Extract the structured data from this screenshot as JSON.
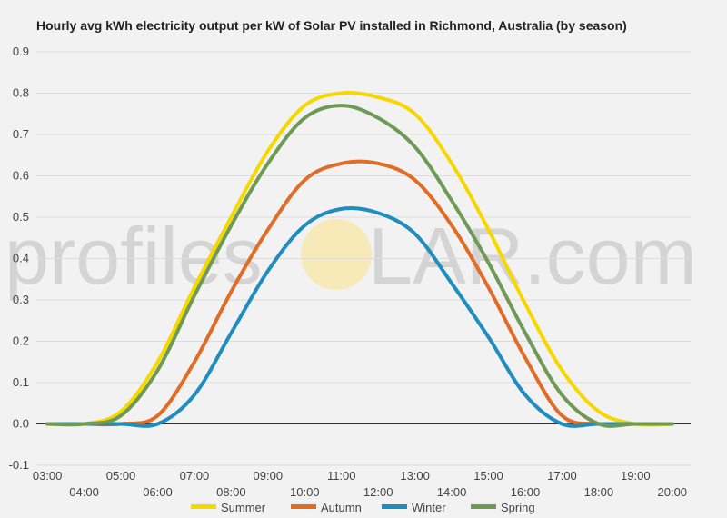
{
  "watermark": {
    "left": "profiles",
    "sun": "O",
    "right": "LAR.com",
    "sun_color": "#f7e9b8"
  },
  "chart_data": {
    "type": "line",
    "title": "Hourly avg kWh electricity output per kW of Solar PV installed in Richmond, Australia (by season)",
    "xlabel": "",
    "ylabel": "",
    "x": [
      3,
      4,
      5,
      6,
      7,
      8,
      9,
      10,
      11,
      12,
      13,
      14,
      15,
      16,
      17,
      18,
      19,
      20
    ],
    "x_tick_labels": [
      "03:00",
      "04:00",
      "05:00",
      "06:00",
      "07:00",
      "08:00",
      "09:00",
      "10:00",
      "11:00",
      "12:00",
      "13:00",
      "14:00",
      "15:00",
      "16:00",
      "17:00",
      "18:00",
      "19:00",
      "20:00"
    ],
    "ylim": [
      -0.1,
      0.9
    ],
    "y_ticks": [
      "-0.1",
      "0.0",
      "0.1",
      "0.2",
      "0.3",
      "0.4",
      "0.5",
      "0.6",
      "0.7",
      "0.8",
      "0.9"
    ],
    "grid": true,
    "legend_position": "bottom",
    "series": [
      {
        "name": "Summer",
        "color": "#f5d800",
        "values": [
          0.0,
          0.0,
          0.03,
          0.15,
          0.33,
          0.5,
          0.66,
          0.77,
          0.8,
          0.79,
          0.75,
          0.63,
          0.47,
          0.29,
          0.13,
          0.03,
          0.0,
          0.0
        ]
      },
      {
        "name": "Autumn",
        "color": "#e06c25",
        "values": [
          0.0,
          0.0,
          0.0,
          0.02,
          0.15,
          0.32,
          0.47,
          0.59,
          0.63,
          0.63,
          0.59,
          0.48,
          0.33,
          0.16,
          0.02,
          0.0,
          0.0,
          0.0
        ]
      },
      {
        "name": "Winter",
        "color": "#1f8dbd",
        "values": [
          0.0,
          0.0,
          0.0,
          0.0,
          0.07,
          0.22,
          0.37,
          0.48,
          0.52,
          0.51,
          0.46,
          0.34,
          0.21,
          0.07,
          0.0,
          0.0,
          0.0,
          0.0
        ]
      },
      {
        "name": "Spring",
        "color": "#6f9a55",
        "values": [
          0.0,
          0.0,
          0.02,
          0.13,
          0.31,
          0.48,
          0.63,
          0.74,
          0.77,
          0.74,
          0.67,
          0.54,
          0.39,
          0.22,
          0.07,
          0.0,
          0.0,
          0.0
        ]
      }
    ]
  }
}
